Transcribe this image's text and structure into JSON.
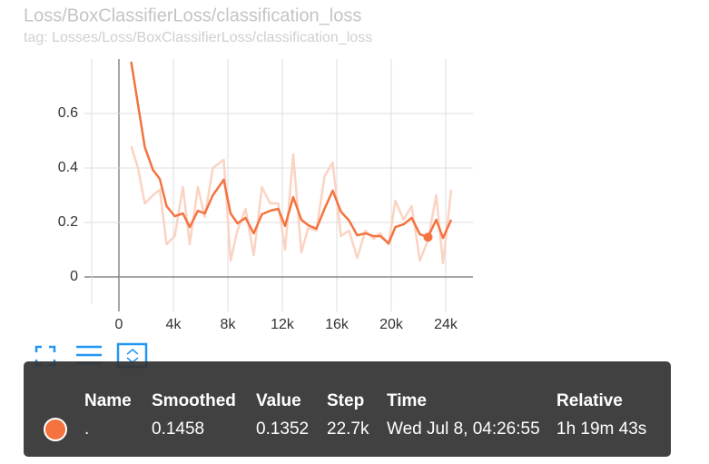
{
  "chart_data": {
    "type": "line",
    "title": "Loss/BoxClassifierLoss/classification_loss",
    "subtitle": "tag: Losses/Loss/BoxClassifierLoss/classification_loss",
    "x": [
      900,
      1400,
      1900,
      2500,
      3000,
      3500,
      4100,
      4700,
      5200,
      5800,
      6300,
      6900,
      7700,
      8200,
      8700,
      9300,
      9900,
      10500,
      11100,
      11700,
      12200,
      12800,
      13400,
      13900,
      14500,
      15100,
      15700,
      16300,
      16900,
      17500,
      18100,
      18700,
      19200,
      19800,
      20300,
      20900,
      21500,
      22100,
      22700,
      23300,
      23800,
      24400
    ],
    "series": [
      {
        "color": "#fbd3c3",
        "values": [
          0.48,
          0.4,
          0.27,
          0.3,
          0.32,
          0.12,
          0.15,
          0.33,
          0.12,
          0.33,
          0.22,
          0.4,
          0.43,
          0.06,
          0.17,
          0.25,
          0.08,
          0.33,
          0.27,
          0.27,
          0.1,
          0.45,
          0.09,
          0.18,
          0.17,
          0.37,
          0.42,
          0.15,
          0.17,
          0.07,
          0.17,
          0.14,
          0.16,
          0.12,
          0.28,
          0.21,
          0.26,
          0.06,
          0.1352,
          0.3,
          0.05,
          0.32
        ]
      },
      {
        "color": "#f4733f",
        "values": [
          0.79,
          0.633,
          0.477,
          0.393,
          0.36,
          0.26,
          0.223,
          0.233,
          0.183,
          0.243,
          0.233,
          0.3,
          0.357,
          0.233,
          0.197,
          0.217,
          0.16,
          0.23,
          0.243,
          0.25,
          0.187,
          0.293,
          0.21,
          0.19,
          0.177,
          0.25,
          0.317,
          0.24,
          0.207,
          0.153,
          0.16,
          0.15,
          0.15,
          0.123,
          0.183,
          0.193,
          0.217,
          0.157,
          0.1458,
          0.21,
          0.143,
          0.21
        ]
      }
    ],
    "xlim": [
      -2000,
      26000
    ],
    "ylim": [
      -0.1,
      0.8
    ],
    "xticks": [
      0,
      {
        "value": 4000,
        "label": "4k"
      },
      {
        "value": 8000,
        "label": "8k"
      },
      {
        "value": 12000,
        "label": "12k"
      },
      {
        "value": 16000,
        "label": "16k"
      },
      {
        "value": 20000,
        "label": "20k"
      },
      {
        "value": 24000,
        "label": "24k"
      }
    ],
    "yticks": [
      0,
      0.2,
      0.4,
      0.6
    ],
    "grid": true,
    "highlight": 38
  },
  "tooltip": {
    "headers": [
      "Name",
      "Smoothed",
      "Value",
      "Step",
      "Time",
      "Relative"
    ],
    "row": [
      ".",
      "0.1458",
      "0.1352",
      "22.7k",
      "Wed Jul 8, 04:26:55",
      "1h 19m 43s"
    ]
  }
}
